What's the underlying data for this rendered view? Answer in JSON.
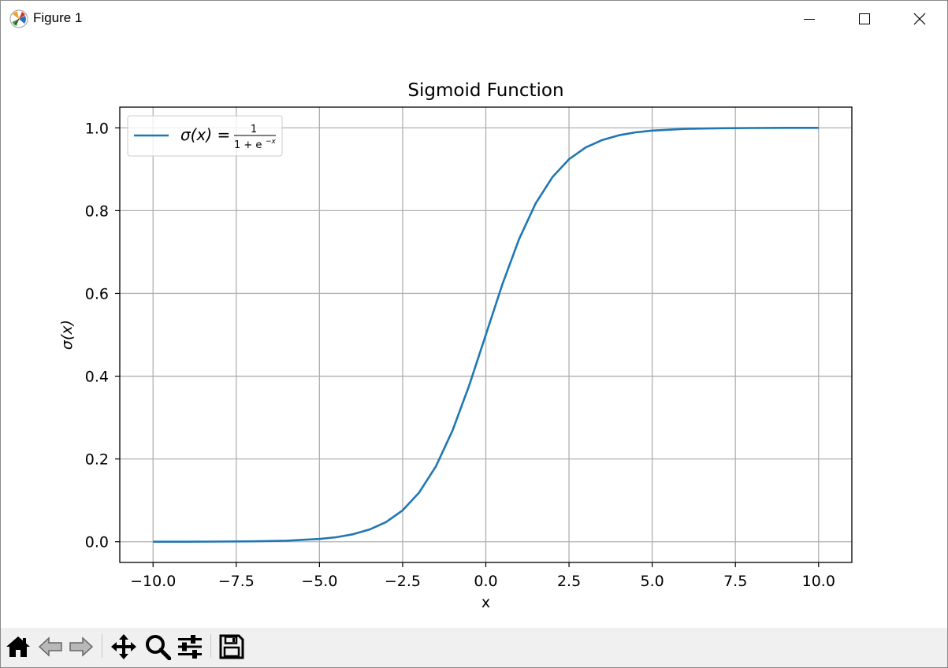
{
  "window": {
    "title": "Figure 1"
  },
  "icons": {
    "app": "matplotlib-logo-icon",
    "minimize": "minimize-icon",
    "maximize": "maximize-icon",
    "close": "close-icon"
  },
  "toolbar": {
    "items": [
      {
        "name": "home",
        "icon": "home-icon"
      },
      {
        "name": "back",
        "icon": "arrow-left-icon"
      },
      {
        "name": "forward",
        "icon": "arrow-right-icon"
      },
      {
        "name": "pan",
        "icon": "move-icon"
      },
      {
        "name": "zoom",
        "icon": "magnifier-icon"
      },
      {
        "name": "configure-subplots",
        "icon": "sliders-icon"
      },
      {
        "name": "save",
        "icon": "floppy-disk-icon"
      }
    ]
  },
  "chart_data": {
    "type": "line",
    "title": "Sigmoid Function",
    "xlabel": "x",
    "ylabel": "σ(x)",
    "xlim": [
      -11.0,
      11.0
    ],
    "ylim": [
      -0.05,
      1.05
    ],
    "xticks": [
      -10.0,
      -7.5,
      -5.0,
      -2.5,
      0.0,
      2.5,
      5.0,
      7.5,
      10.0
    ],
    "xtick_labels": [
      "−10.0",
      "−7.5",
      "−5.0",
      "−2.5",
      "0.0",
      "2.5",
      "5.0",
      "7.5",
      "10.0"
    ],
    "yticks": [
      0.0,
      0.2,
      0.4,
      0.6,
      0.8,
      1.0
    ],
    "ytick_labels": [
      "0.0",
      "0.2",
      "0.4",
      "0.6",
      "0.8",
      "1.0"
    ],
    "grid": true,
    "legend_position": "upper-left",
    "series": [
      {
        "name": "σ(x) = 1/(1 + e^−x)",
        "legend": {
          "lhs": "σ(x) =",
          "numerator": "1",
          "denominator": "1 + e",
          "exponent": "−x"
        },
        "color": "#1f77b4",
        "x": [
          -10.0,
          -9.0,
          -8.0,
          -7.0,
          -6.0,
          -5.0,
          -4.5,
          -4.0,
          -3.5,
          -3.0,
          -2.5,
          -2.0,
          -1.5,
          -1.0,
          -0.5,
          0.0,
          0.5,
          1.0,
          1.5,
          2.0,
          2.5,
          3.0,
          3.5,
          4.0,
          4.5,
          5.0,
          6.0,
          7.0,
          8.0,
          9.0,
          10.0
        ],
        "y": [
          5e-05,
          0.00012,
          0.00034,
          0.00091,
          0.00247,
          0.00669,
          0.01099,
          0.01799,
          0.02931,
          0.04743,
          0.07586,
          0.1192,
          0.18243,
          0.26894,
          0.37754,
          0.5,
          0.62246,
          0.73106,
          0.81757,
          0.8808,
          0.92414,
          0.95257,
          0.97069,
          0.98201,
          0.98901,
          0.99331,
          0.99753,
          0.99909,
          0.99966,
          0.99988,
          0.99995
        ]
      }
    ]
  }
}
